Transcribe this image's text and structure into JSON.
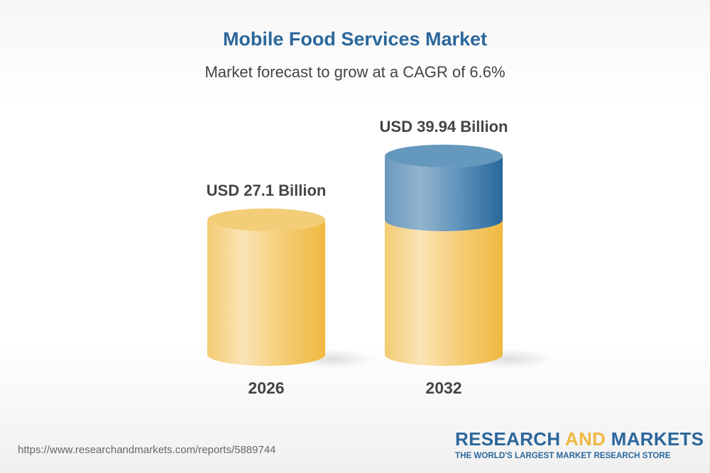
{
  "title": "Mobile Food Services Market",
  "subtitle": "Market forecast to grow at a CAGR of 6.6%",
  "chart_data": {
    "type": "bar",
    "style": "3d-cylinder",
    "categories": [
      "2026",
      "2032"
    ],
    "values": [
      27.1,
      39.94
    ],
    "data_labels": [
      "USD 27.1 Billion",
      "USD 39.94 Billion"
    ],
    "unit": "USD Billion",
    "cagr": "6.6%",
    "colors": {
      "base": "#f2c35a",
      "growth": "#2e6da0"
    },
    "grid": false
  },
  "footer": {
    "url": "https://www.researchandmarkets.com/reports/5889744",
    "logo_part1": "RESEARCH ",
    "logo_part2": "AND",
    "logo_part3": " MARKETS",
    "logo_tagline": "THE WORLD'S LARGEST MARKET RESEARCH STORE"
  }
}
